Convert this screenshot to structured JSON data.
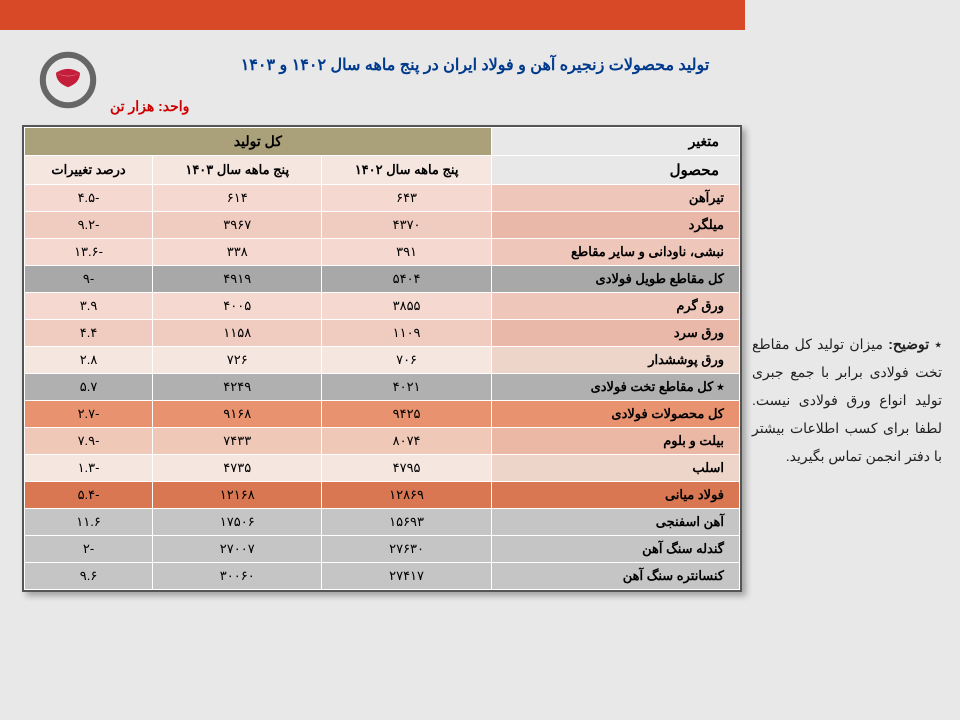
{
  "title": "تولید محصولات زنجیره آهن و فولاد ایران در پنج ماهه سال ۱۴۰۲ و ۱۴۰۳",
  "unit_label": "واحد:",
  "unit_value": "هزار تن",
  "note_prefix": "٭ ",
  "note_bold": "توضیح:",
  "note_text": " میزان تولید کل مقاطع تخت فولادی برابر با جمع جبری تولید انواع ورق فولادی نیست. لطفا برای کسب اطلاعات بیشتر با دفتر انجمن تماس بگیرید.",
  "headers": {
    "variable": "متغیر",
    "total_production": "کل تولید",
    "product": "محصول",
    "period_1402": "پنج ماهه سال ۱۴۰۲",
    "period_1403": "پنج ماهه سال ۱۴۰۳",
    "pct_change": "درصد تغییرات"
  },
  "rows": [
    {
      "class": "row-lightpink",
      "product": "تیرآهن",
      "v1402": "۶۴۳",
      "v1403": "۶۱۴",
      "pct": "-۴.۵"
    },
    {
      "class": "row-midpink",
      "product": "میلگرد",
      "v1402": "۴۳۷۰",
      "v1403": "۳۹۶۷",
      "pct": "-۹.۲"
    },
    {
      "class": "row-lightpink",
      "product": "نبشی، ناودانی و سایر مقاطع",
      "v1402": "۳۹۱",
      "v1403": "۳۳۸",
      "pct": "-۱۳.۶"
    },
    {
      "class": "row-gray",
      "product": "کل مقاطع طویل فولادی",
      "v1402": "۵۴۰۴",
      "v1403": "۴۹۱۹",
      "pct": "-۹"
    },
    {
      "class": "row-lightpink",
      "product": "ورق گرم",
      "v1402": "۳۸۵۵",
      "v1403": "۴۰۰۵",
      "pct": "۳.۹"
    },
    {
      "class": "row-midpink",
      "product": "ورق سرد",
      "v1402": "۱۱۰۹",
      "v1403": "۱۱۵۸",
      "pct": "۴.۴"
    },
    {
      "class": "row-cream",
      "product": "ورق پوششدار",
      "v1402": "۷۰۶",
      "v1403": "۷۲۶",
      "pct": "۲.۸"
    },
    {
      "class": "row-gray2",
      "product": "٭ کل مقاطع تخت فولادی",
      "v1402": "۴۰۲۱",
      "v1403": "۴۲۴۹",
      "pct": "۵.۷"
    },
    {
      "class": "row-orange",
      "product": "کل محصولات فولادی",
      "v1402": "۹۴۲۵",
      "v1403": "۹۱۶۸",
      "pct": "-۲.۷"
    },
    {
      "class": "row-peach",
      "product": "بیلت و بلوم",
      "v1402": "۸۰۷۴",
      "v1403": "۷۴۳۳",
      "pct": "-۷.۹"
    },
    {
      "class": "row-cream",
      "product": "اسلب",
      "v1402": "۴۷۹۵",
      "v1403": "۴۷۳۵",
      "pct": "-۱.۳"
    },
    {
      "class": "row-darkorange",
      "product": "فولاد میانی",
      "v1402": "۱۲۸۶۹",
      "v1403": "۱۲۱۶۸",
      "pct": "-۵.۴"
    },
    {
      "class": "row-lightgray",
      "product": "آهن اسفنجی",
      "v1402": "۱۵۶۹۳",
      "v1403": "۱۷۵۰۶",
      "pct": "۱۱.۶"
    },
    {
      "class": "row-lightgray",
      "product": "گندله سنگ آهن",
      "v1402": "۲۷۶۳۰",
      "v1403": "۲۷۰۰۷",
      "pct": "-۲"
    },
    {
      "class": "row-lightgray",
      "product": "کنسانتره سنگ آهن",
      "v1402": "۲۷۴۱۷",
      "v1403": "۳۰۰۶۰",
      "pct": "۹.۶"
    }
  ]
}
